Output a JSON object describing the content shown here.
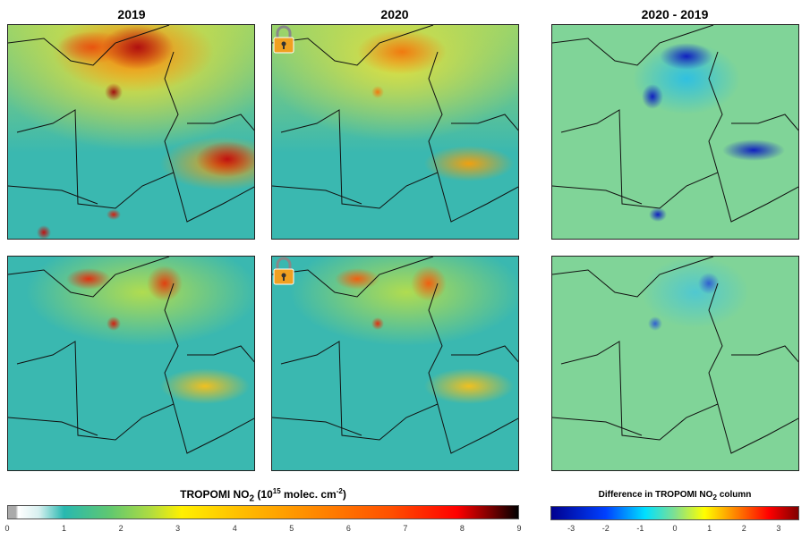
{
  "titles": [
    "2019",
    "2020",
    "2020 - 2019"
  ],
  "colorbar_abs": {
    "label_pre": "TROPOMI NO",
    "label_sub": "2",
    "label_post": " (10",
    "label_sup": "15",
    "label_post2": " molec. cm",
    "label_sup2": "-2",
    "label_end": ")",
    "ticks": [
      "0",
      "1",
      "2",
      "3",
      "4",
      "5",
      "6",
      "7",
      "8",
      "9"
    ],
    "range": [
      0,
      9
    ]
  },
  "colorbar_diff": {
    "label_pre": "Difference in TROPOMI NO",
    "label_sub": "2",
    "label_post": " column",
    "ticks": [
      "-3",
      "-2",
      "-1",
      "0",
      "1",
      "2",
      "3"
    ],
    "range": [
      -3.6,
      3.6
    ]
  },
  "icons": [
    "padlock-icon"
  ]
}
